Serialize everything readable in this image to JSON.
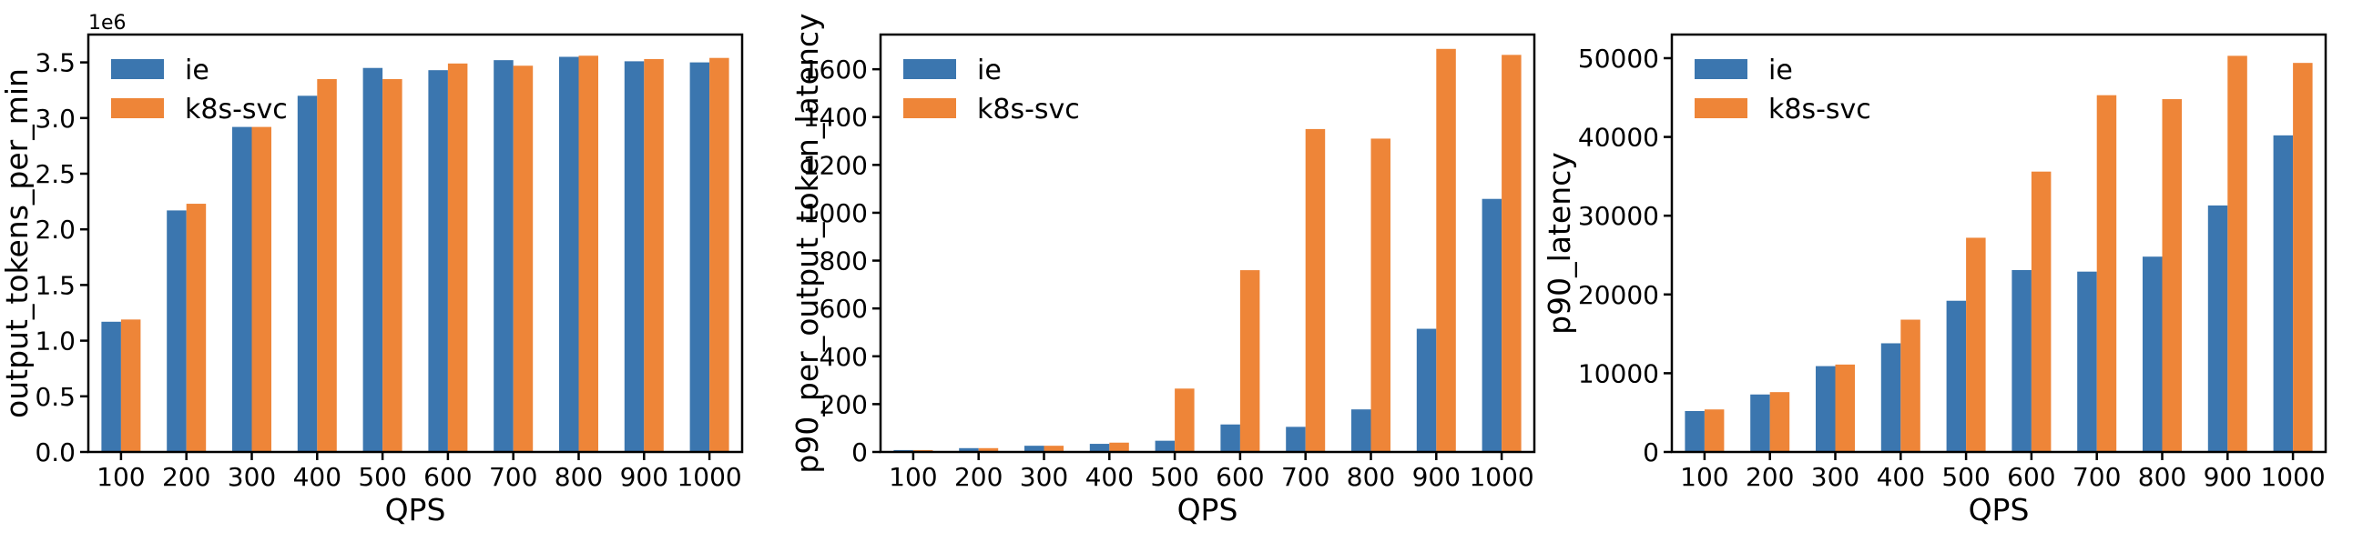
{
  "figure": {
    "background": "#ffffff",
    "series_colors": {
      "ie": "#3b76af",
      "k8s-svc": "#ee8538"
    },
    "legend_labels": [
      "ie",
      "k8s-svc"
    ]
  },
  "chart_data": [
    {
      "type": "bar",
      "title": "",
      "xlabel": "QPS",
      "ylabel": "output_tokens_per_min",
      "y_offset_text": "1e6",
      "values_unit": "1e6",
      "categories": [
        "100",
        "200",
        "300",
        "400",
        "500",
        "600",
        "700",
        "800",
        "900",
        "1000"
      ],
      "series": [
        {
          "name": "ie",
          "color": "#3b76af",
          "values": [
            1.17,
            2.17,
            2.92,
            3.2,
            3.45,
            3.43,
            3.52,
            3.55,
            3.51,
            3.5
          ]
        },
        {
          "name": "k8s-svc",
          "color": "#ee8538",
          "values": [
            1.19,
            2.23,
            2.92,
            3.35,
            3.35,
            3.49,
            3.47,
            3.56,
            3.53,
            3.54
          ]
        }
      ],
      "ylim": [
        0,
        3.75
      ],
      "ytick_values": [
        0,
        0.5,
        1.0,
        1.5,
        2.0,
        2.5,
        3.0,
        3.5
      ],
      "ytick_labels": [
        "0.0",
        "0.5",
        "1.0",
        "1.5",
        "2.0",
        "2.5",
        "3.0",
        "3.5"
      ],
      "legend_position": "upper left",
      "grid": false
    },
    {
      "type": "bar",
      "title": "",
      "xlabel": "QPS",
      "ylabel": "p90_per_output_token_latency",
      "y_offset_text": "",
      "values_unit": "",
      "categories": [
        "100",
        "200",
        "300",
        "400",
        "500",
        "600",
        "700",
        "800",
        "900",
        "1000"
      ],
      "series": [
        {
          "name": "ie",
          "color": "#3b76af",
          "values": [
            8,
            16,
            26,
            34,
            47,
            115,
            105,
            178,
            515,
            1058
          ]
        },
        {
          "name": "k8s-svc",
          "color": "#ee8538",
          "values": [
            8,
            16,
            26,
            39,
            265,
            760,
            1350,
            1310,
            1685,
            1660
          ]
        }
      ],
      "ylim": [
        0,
        1745
      ],
      "ytick_values": [
        0,
        200,
        400,
        600,
        800,
        1000,
        1200,
        1400,
        1600
      ],
      "ytick_labels": [
        "0",
        "200",
        "400",
        "600",
        "800",
        "1000",
        "1200",
        "1400",
        "1600"
      ],
      "legend_position": "upper left",
      "grid": false
    },
    {
      "type": "bar",
      "title": "",
      "xlabel": "QPS",
      "ylabel": "p90_latency",
      "y_offset_text": "",
      "values_unit": "",
      "categories": [
        "100",
        "200",
        "300",
        "400",
        "500",
        "600",
        "700",
        "800",
        "900",
        "1000"
      ],
      "series": [
        {
          "name": "ie",
          "color": "#3b76af",
          "values": [
            5200,
            7300,
            10900,
            13800,
            19200,
            23100,
            22900,
            24800,
            31300,
            40200
          ]
        },
        {
          "name": "k8s-svc",
          "color": "#ee8538",
          "values": [
            5400,
            7600,
            11100,
            16800,
            27200,
            35600,
            45300,
            44800,
            50300,
            49400
          ]
        }
      ],
      "ylim": [
        0,
        53000
      ],
      "ytick_values": [
        0,
        10000,
        20000,
        30000,
        40000,
        50000
      ],
      "ytick_labels": [
        "0",
        "10000",
        "20000",
        "30000",
        "40000",
        "50000"
      ],
      "legend_position": "upper left",
      "grid": false
    }
  ]
}
